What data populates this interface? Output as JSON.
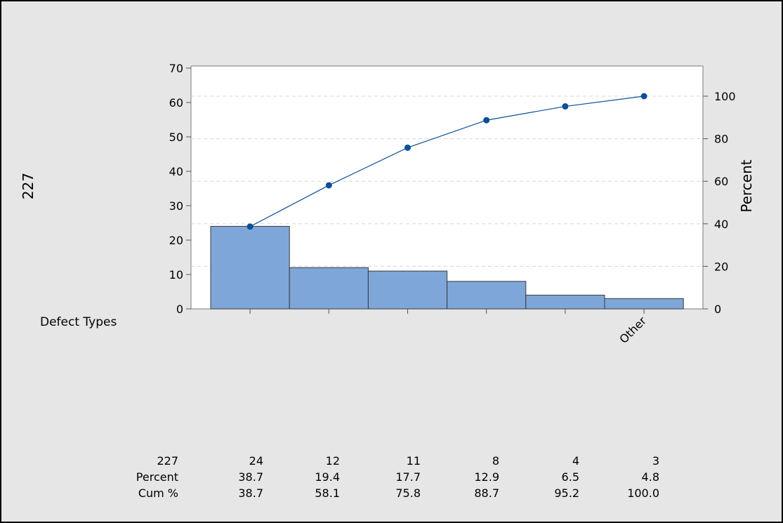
{
  "chart_data": {
    "type": "bar",
    "ylabel": "227",
    "y2label": "Percent",
    "xlabel": "Defect Types",
    "ylim": [
      0,
      70
    ],
    "y_ticks": [
      0,
      10,
      20,
      30,
      40,
      50,
      60,
      70
    ],
    "y2lim": [
      0,
      114
    ],
    "y2_ticks": [
      0,
      20,
      40,
      60,
      80,
      100
    ],
    "categories": [
      "",
      "",
      "",
      "",
      "",
      "Other"
    ],
    "values": [
      24,
      12,
      11,
      8,
      4,
      3
    ],
    "cumulative_percent_line": [
      38.7,
      58.1,
      75.8,
      88.7,
      95.2,
      100.0
    ],
    "grid": true,
    "colors": {
      "bar": "#7ea6d9",
      "bar_edge": "#3a3a3a",
      "line": "#0b4f96",
      "background": "#e6e6e6",
      "plot_bg": "#ffffff"
    }
  },
  "table": {
    "rows": [
      {
        "label": "227",
        "values": [
          "24",
          "12",
          "11",
          "8",
          "4",
          "3"
        ]
      },
      {
        "label": "Percent",
        "values": [
          "38.7",
          "19.4",
          "17.7",
          "12.9",
          "6.5",
          "4.8"
        ]
      },
      {
        "label": "Cum %",
        "values": [
          "38.7",
          "58.1",
          "75.8",
          "88.7",
          "95.2",
          "100.0"
        ]
      }
    ]
  }
}
